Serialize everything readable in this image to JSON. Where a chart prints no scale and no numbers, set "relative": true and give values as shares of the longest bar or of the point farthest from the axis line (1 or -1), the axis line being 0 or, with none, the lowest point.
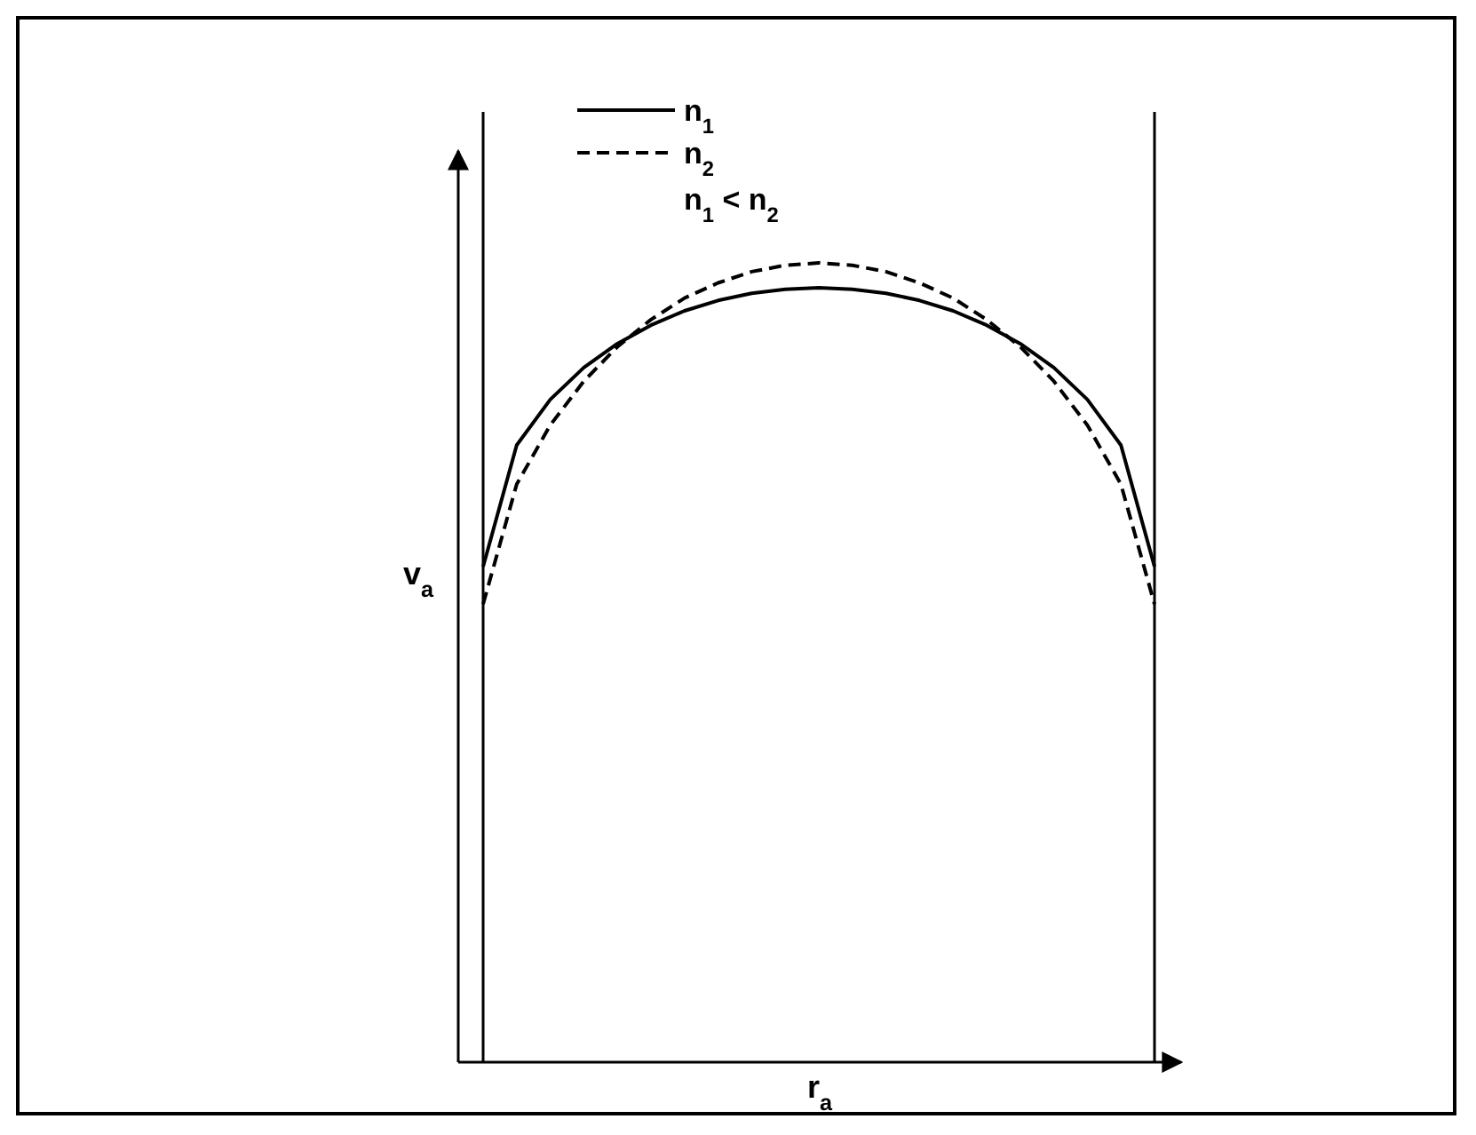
{
  "chart_data": {
    "type": "line",
    "relative": true,
    "xlabel": "r$_{a}$",
    "ylabel": "v$_{a}$",
    "categories": [
      null,
      null,
      null,
      null,
      null,
      null,
      null,
      null,
      null,
      null,
      null,
      null,
      null,
      null,
      null,
      null,
      null,
      null,
      null,
      null,
      null
    ],
    "legend": "top left",
    "series": [
      {
        "name": "n$_{1}$",
        "color": "#000000",
        "line_style": "solid",
        "values": [
          0.62,
          0.772,
          0.829,
          0.869,
          0.899,
          0.922,
          0.94,
          0.953,
          0.962,
          0.967,
          0.969,
          0.967,
          0.962,
          0.953,
          0.94,
          0.922,
          0.899,
          0.869,
          0.829,
          0.772,
          0.62
        ]
      },
      {
        "name": "n$_{2}$",
        "color": "#000000",
        "line_style": "dashed",
        "values": [
          0.573,
          0.723,
          0.797,
          0.852,
          0.895,
          0.929,
          0.956,
          0.975,
          0.989,
          0.997,
          1,
          0.997,
          0.989,
          0.975,
          0.956,
          0.929,
          0.895,
          0.852,
          0.797,
          0.723,
          0.573
        ]
      }
    ],
    "annotations": [
      "n$_{1}$ < n$_{2}$"
    ]
  }
}
